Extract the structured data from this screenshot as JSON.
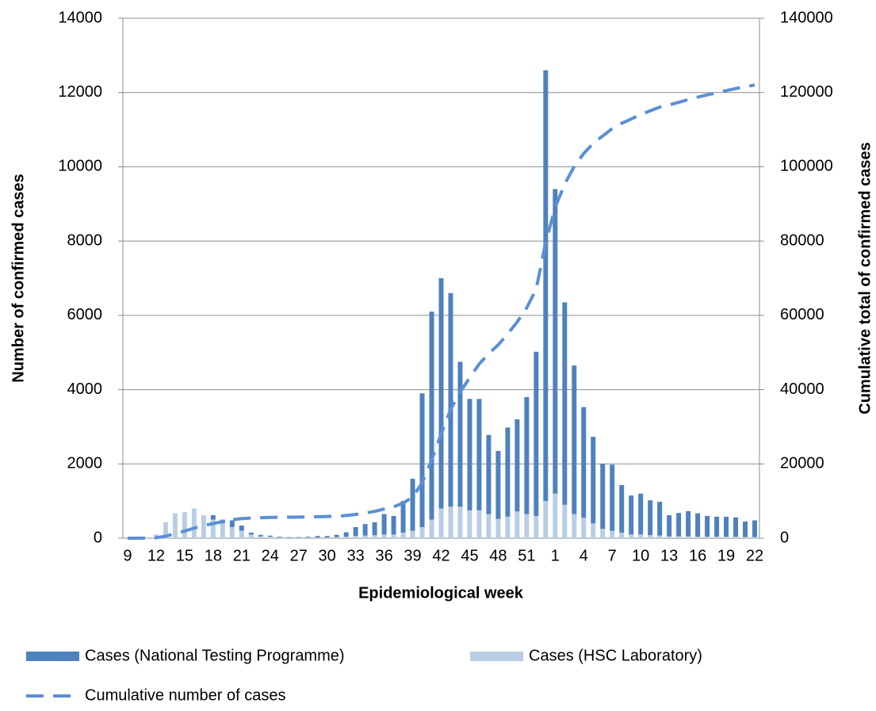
{
  "chart_data": {
    "type": "bar",
    "x_label": "Epidemiological week",
    "y_label": "Number of confirmed cases",
    "y2_label": "Cumulative total of confirmed cases",
    "categories": [
      "9",
      null,
      null,
      "12",
      null,
      null,
      "15",
      null,
      null,
      "18",
      null,
      null,
      "21",
      null,
      null,
      "24",
      null,
      null,
      "27",
      null,
      null,
      "30",
      null,
      null,
      "33",
      null,
      null,
      "36",
      null,
      null,
      "39",
      null,
      null,
      "42",
      null,
      null,
      "45",
      null,
      null,
      "48",
      null,
      null,
      "51",
      null,
      null,
      "1",
      null,
      null,
      "4",
      null,
      null,
      "7",
      null,
      null,
      "10",
      null,
      null,
      "13",
      null,
      null,
      "16",
      null,
      null,
      "19",
      null,
      null,
      "22"
    ],
    "series": [
      {
        "name": "Cases (HSC Laboratory)",
        "color": "#b9cde5",
        "stack_order": 0,
        "values": [
          0,
          0,
          20,
          100,
          430,
          670,
          700,
          800,
          620,
          500,
          400,
          300,
          200,
          100,
          50,
          40,
          20,
          15,
          15,
          20,
          20,
          20,
          30,
          40,
          60,
          70,
          80,
          100,
          100,
          150,
          200,
          300,
          500,
          800,
          850,
          850,
          750,
          750,
          650,
          520,
          580,
          720,
          650,
          600,
          1000,
          1200,
          900,
          650,
          550,
          400,
          250,
          200,
          150,
          100,
          100,
          80,
          70,
          50,
          50,
          50,
          40,
          40,
          40,
          40,
          40,
          30,
          30
        ]
      },
      {
        "name": "Cases (National Testing Programme)",
        "color": "#4f81bd",
        "stack_order": 1,
        "values": [
          0,
          0,
          0,
          0,
          0,
          0,
          0,
          0,
          0,
          120,
          100,
          180,
          140,
          50,
          40,
          30,
          20,
          15,
          15,
          20,
          40,
          40,
          60,
          120,
          240,
          310,
          350,
          550,
          500,
          850,
          1400,
          3600,
          5600,
          6200,
          5750,
          3900,
          3000,
          3000,
          2130,
          1830,
          2400,
          2480,
          3150,
          4420,
          11600,
          8200,
          5450,
          4000,
          2980,
          2330,
          1750,
          1780,
          1280,
          1050,
          1100,
          940,
          910,
          570,
          630,
          680,
          630,
          560,
          540,
          540,
          520,
          420,
          450
        ]
      },
      {
        "name": "Cumulative number of cases",
        "color": "#5b8fd6",
        "axis": "y2",
        "line_style": "dashed",
        "values": [
          0,
          0,
          20,
          120,
          550,
          1220,
          1920,
          2720,
          3340,
          3960,
          4460,
          4940,
          5280,
          5430,
          5520,
          5590,
          5630,
          5660,
          5690,
          5730,
          5790,
          5850,
          5940,
          6100,
          6400,
          6780,
          7210,
          7860,
          8460,
          9460,
          11060,
          14960,
          21060,
          28060,
          34660,
          39410,
          43160,
          46910,
          49690,
          52040,
          55020,
          58220,
          62020,
          67040,
          79640,
          89040,
          95390,
          100040,
          103570,
          106300,
          108300,
          110280,
          111710,
          112860,
          114060,
          115080,
          116060,
          116680,
          117360,
          118090,
          118760,
          119360,
          119940,
          120520,
          121080,
          121530,
          122010
        ]
      }
    ],
    "ylim": [
      0,
      14000
    ],
    "yticks": [
      0,
      2000,
      4000,
      6000,
      8000,
      10000,
      12000,
      14000
    ],
    "y2lim": [
      0,
      140000
    ],
    "y2ticks": [
      0,
      20000,
      40000,
      60000,
      80000,
      100000,
      120000,
      140000
    ],
    "grid": true
  }
}
